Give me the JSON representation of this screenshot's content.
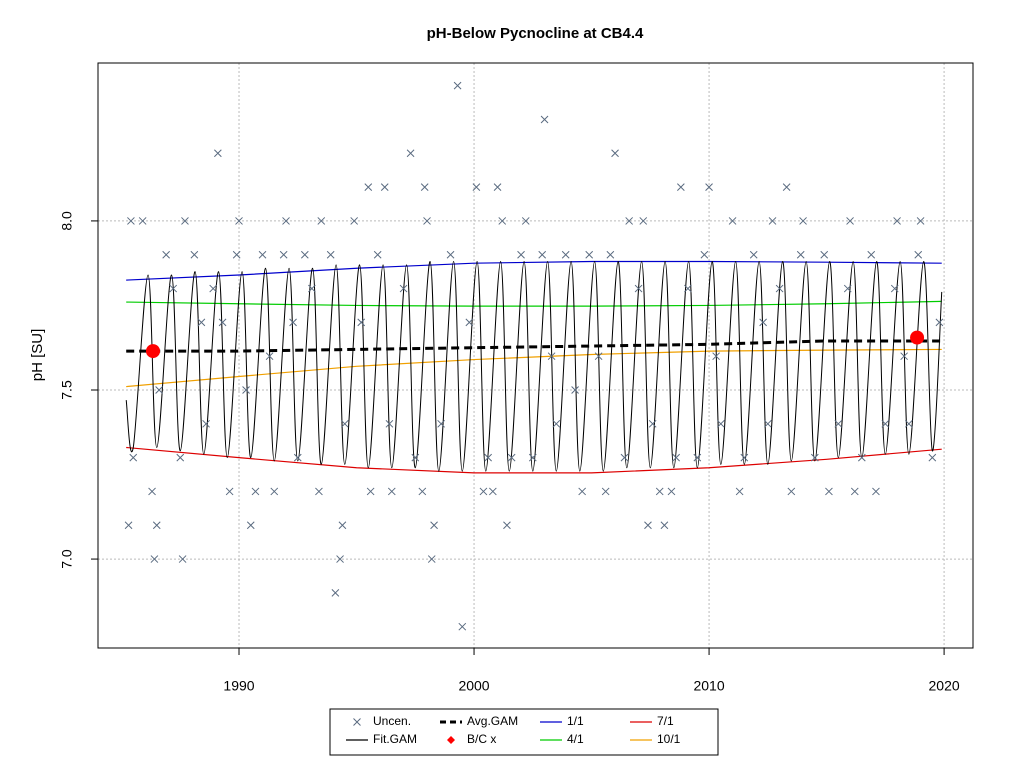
{
  "chart_data": {
    "type": "line",
    "title": "pH-Below Pycnocline at CB4.4",
    "y_label": "pH [SU]",
    "xlim": [
      1984.0,
      2021.23
    ],
    "ylim": [
      6.737,
      8.467
    ],
    "xticks": [
      1990,
      2000,
      2010,
      2020
    ],
    "yticks": [
      {
        "value": 7,
        "label": "7.0"
      },
      7.5,
      {
        "value": 8,
        "label": "8.0"
      }
    ],
    "grid": true,
    "legend": "bottom",
    "series": [
      {
        "name": "Uncen.",
        "mode": "x-marker",
        "color": "#5a6b80",
        "x": [
          1985.3,
          1985.4,
          1985.5,
          1985.9,
          1986.3,
          1986.4,
          1986.5,
          1986.6,
          1986.9,
          1987.2,
          1987.5,
          1987.6,
          1987.7,
          1988.1,
          1988.4,
          1988.6,
          1988.9,
          1989.1,
          1989.3,
          1989.6,
          1989.9,
          1990.0,
          1990.3,
          1990.5,
          1990.7,
          1991.0,
          1991.3,
          1991.5,
          1991.9,
          1992.0,
          1992.3,
          1992.5,
          1992.8,
          1993.1,
          1993.4,
          1993.5,
          1993.9,
          1994.1,
          1994.3,
          1994.4,
          1994.5,
          1994.9,
          1995.2,
          1995.5,
          1995.6,
          1995.9,
          1996.2,
          1996.4,
          1996.5,
          1997.0,
          1997.3,
          1997.5,
          1997.8,
          1997.9,
          1998.0,
          1998.2,
          1998.3,
          1998.6,
          1999.0,
          1999.3,
          1999.5,
          1999.8,
          2000.1,
          2000.4,
          2000.6,
          2000.8,
          2001.0,
          2001.2,
          2001.4,
          2001.6,
          2002.0,
          2002.2,
          2002.5,
          2002.9,
          2003.0,
          2003.3,
          2003.5,
          2003.9,
          2004.3,
          2004.6,
          2004.9,
          2005.3,
          2005.6,
          2005.8,
          2006.0,
          2006.4,
          2006.6,
          2007.0,
          2007.2,
          2007.4,
          2007.6,
          2007.9,
          2008.1,
          2008.4,
          2008.6,
          2008.8,
          2009.1,
          2009.5,
          2009.8,
          2010.0,
          2010.3,
          2010.5,
          2011.0,
          2011.3,
          2011.5,
          2011.9,
          2012.3,
          2012.5,
          2012.7,
          2013.0,
          2013.3,
          2013.5,
          2013.9,
          2014.0,
          2014.5,
          2014.9,
          2015.1,
          2015.5,
          2015.9,
          2016.0,
          2016.2,
          2016.5,
          2016.9,
          2017.1,
          2017.5,
          2017.9,
          2018.0,
          2018.3,
          2018.5,
          2018.9,
          2019.0,
          2019.5,
          2019.8
        ],
        "values": [
          7.1,
          8.0,
          7.3,
          8.0,
          7.2,
          7.0,
          7.1,
          7.5,
          7.9,
          7.8,
          7.3,
          7.0,
          8.0,
          7.9,
          7.7,
          7.4,
          7.8,
          8.2,
          7.7,
          7.2,
          7.9,
          8.0,
          7.5,
          7.1,
          7.2,
          7.9,
          7.6,
          7.2,
          7.9,
          8.0,
          7.7,
          7.3,
          7.9,
          7.8,
          7.2,
          8.0,
          7.9,
          6.9,
          7.0,
          7.1,
          7.4,
          8.0,
          7.7,
          8.1,
          7.2,
          7.9,
          8.1,
          7.4,
          7.2,
          7.8,
          8.2,
          7.3,
          7.2,
          8.1,
          8.0,
          7.0,
          7.1,
          7.4,
          7.9,
          8.4,
          6.8,
          7.7,
          8.1,
          7.2,
          7.3,
          7.2,
          8.1,
          8.0,
          7.1,
          7.3,
          7.9,
          8.0,
          7.3,
          7.9,
          8.3,
          7.6,
          7.4,
          7.9,
          7.5,
          7.2,
          7.9,
          7.6,
          7.2,
          7.9,
          8.2,
          7.3,
          8.0,
          7.8,
          8.0,
          7.1,
          7.4,
          7.2,
          7.1,
          7.2,
          7.3,
          8.1,
          7.8,
          7.3,
          7.9,
          8.1,
          7.6,
          7.4,
          8.0,
          7.2,
          7.3,
          7.9,
          7.7,
          7.4,
          8.0,
          7.8,
          8.1,
          7.2,
          7.9,
          8.0,
          7.3,
          7.9,
          7.2,
          7.4,
          7.8,
          8.0,
          7.2,
          7.3,
          7.9,
          7.2,
          7.4,
          7.8,
          8.0,
          7.6,
          7.4,
          7.9,
          8.0,
          7.3,
          7.7
        ]
      },
      {
        "name": "Fit.GAM",
        "mode": "smooth",
        "color": "#000000",
        "x": [
          1985.2,
          1985.5,
          1986.13,
          1986.5,
          1987.13,
          1987.5,
          1988.13,
          1988.5,
          1989.13,
          1989.5,
          1990.13,
          1990.5,
          1991.13,
          1991.5,
          1992.13,
          1992.5,
          1993.13,
          1993.5,
          1994.13,
          1994.5,
          1995.13,
          1995.5,
          1996.13,
          1996.5,
          1997.13,
          1997.5,
          1998.13,
          1998.5,
          1999.13,
          1999.5,
          2000.13,
          2000.5,
          2001.13,
          2001.5,
          2002.13,
          2002.5,
          2003.13,
          2003.5,
          2004.13,
          2004.5,
          2005.13,
          2005.5,
          2006.13,
          2006.5,
          2007.13,
          2007.5,
          2008.13,
          2008.5,
          2009.13,
          2009.5,
          2010.13,
          2010.5,
          2011.13,
          2011.5,
          2012.13,
          2012.5,
          2013.13,
          2013.5,
          2014.13,
          2014.5,
          2015.13,
          2015.5,
          2016.13,
          2016.5,
          2017.13,
          2017.5,
          2018.13,
          2018.5,
          2019.13,
          2019.5,
          2019.9
        ],
        "values": [
          7.47,
          7.33,
          7.84,
          7.33,
          7.84,
          7.32,
          7.85,
          7.31,
          7.85,
          7.3,
          7.85,
          7.3,
          7.86,
          7.29,
          7.86,
          7.29,
          7.86,
          7.28,
          7.87,
          7.28,
          7.87,
          7.27,
          7.87,
          7.27,
          7.87,
          7.27,
          7.88,
          7.26,
          7.88,
          7.26,
          7.88,
          7.26,
          7.88,
          7.26,
          7.88,
          7.26,
          7.88,
          7.26,
          7.88,
          7.26,
          7.88,
          7.26,
          7.88,
          7.27,
          7.88,
          7.27,
          7.88,
          7.27,
          7.88,
          7.27,
          7.88,
          7.28,
          7.88,
          7.28,
          7.88,
          7.28,
          7.88,
          7.29,
          7.88,
          7.29,
          7.88,
          7.3,
          7.88,
          7.3,
          7.88,
          7.31,
          7.88,
          7.31,
          7.88,
          7.32,
          7.79
        ]
      },
      {
        "name": "Avg.GAM",
        "mode": "dashed",
        "color": "#000000",
        "x": [
          1985.2,
          1990,
          1995,
          2000,
          2005,
          2010,
          2015,
          2019.9
        ],
        "values": [
          7.615,
          7.615,
          7.62,
          7.625,
          7.63,
          7.635,
          7.645,
          7.645
        ]
      },
      {
        "name": "B/C x",
        "mode": "dot",
        "color": "#ff0000",
        "x": [
          1986.34,
          2018.85
        ],
        "values": [
          7.615,
          7.655
        ]
      },
      {
        "name": "1/1",
        "mode": "line",
        "color": "#0000cc",
        "x": [
          1985.2,
          1990,
          1995,
          2000,
          2005,
          2010,
          2015,
          2019.9
        ],
        "values": [
          7.825,
          7.84,
          7.86,
          7.875,
          7.88,
          7.88,
          7.878,
          7.875
        ]
      },
      {
        "name": "4/1",
        "mode": "line",
        "color": "#00cc00",
        "x": [
          1985.2,
          1990,
          1995,
          2000,
          2005,
          2010,
          2015,
          2019.9
        ],
        "values": [
          7.76,
          7.755,
          7.75,
          7.748,
          7.748,
          7.75,
          7.755,
          7.762
        ]
      },
      {
        "name": "7/1",
        "mode": "line",
        "color": "#dd0000",
        "x": [
          1985.2,
          1990,
          1995,
          2000,
          2005,
          2010,
          2015,
          2019.9
        ],
        "values": [
          7.33,
          7.3,
          7.27,
          7.255,
          7.255,
          7.27,
          7.295,
          7.325
        ]
      },
      {
        "name": "10/1",
        "mode": "line",
        "color": "#f0a000",
        "x": [
          1985.2,
          1990,
          1995,
          2000,
          2005,
          2010,
          2015,
          2019.9
        ],
        "values": [
          7.51,
          7.54,
          7.57,
          7.59,
          7.605,
          7.615,
          7.618,
          7.62
        ]
      }
    ]
  }
}
